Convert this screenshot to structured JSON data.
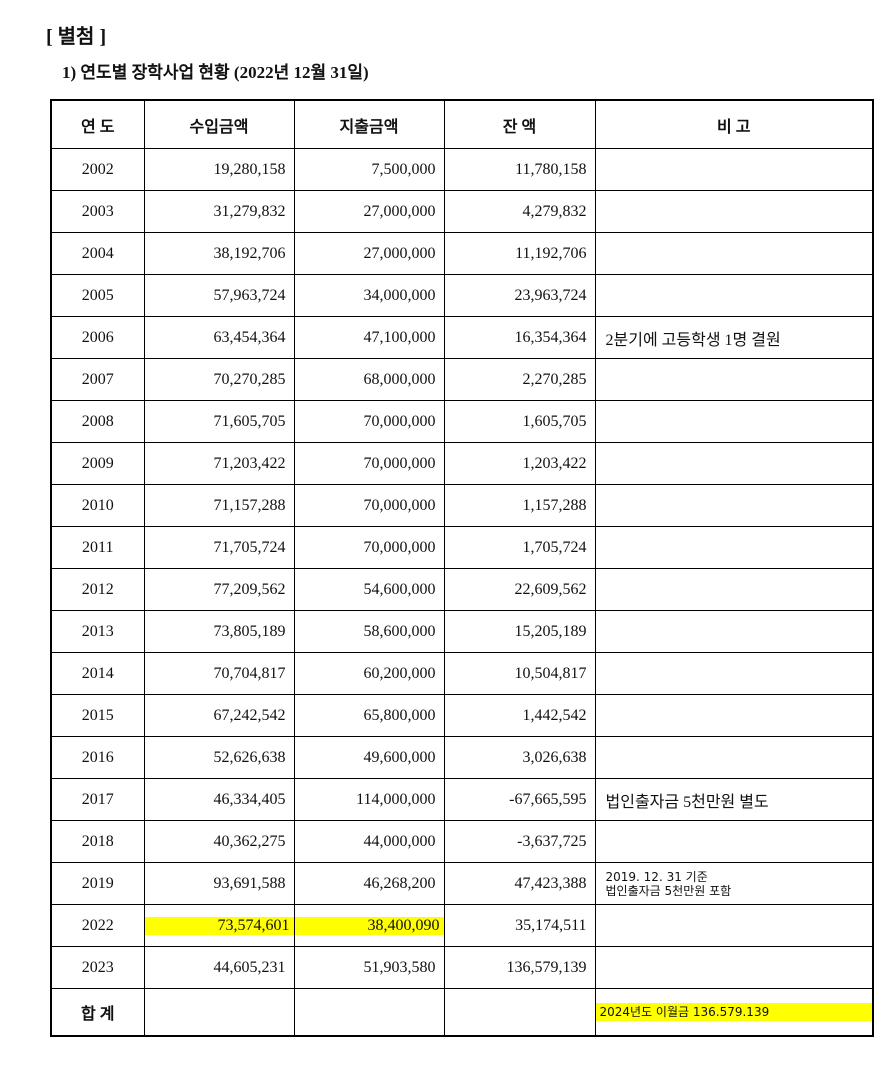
{
  "header": {
    "title": "[ 별첨 ]",
    "subtitle": "1) 연도별 장학사업 현황 (2022년 12월 31일)"
  },
  "table": {
    "columns": [
      "연  도",
      "수입금액",
      "지출금액",
      "잔  액",
      "비 고"
    ],
    "rows": [
      [
        "2002",
        "19,280,158",
        "7,500,000",
        "11,780,158",
        null
      ],
      [
        "2003",
        "31,279,832",
        "27,000,000",
        "4,279,832",
        null
      ],
      [
        "2004",
        "38,192,706",
        "27,000,000",
        "11,192,706",
        null
      ],
      [
        "2005",
        "57,963,724",
        "34,000,000",
        "23,963,724",
        null
      ],
      [
        "2006",
        "63,454,364",
        "47,100,000",
        "16,354,364",
        "2분기에 고등학생 1명 결원"
      ],
      [
        "2007",
        "70,270,285",
        "68,000,000",
        "2,270,285",
        null
      ],
      [
        "2008",
        "71,605,705",
        "70,000,000",
        "1,605,705",
        null
      ],
      [
        "2009",
        "71,203,422",
        "70,000,000",
        "1,203,422",
        null
      ],
      [
        "2010",
        "71,157,288",
        "70,000,000",
        "1,157,288",
        null
      ],
      [
        "2011",
        "71,705,724",
        "70,000,000",
        "1,705,724",
        null
      ],
      [
        "2012",
        "77,209,562",
        "54,600,000",
        "22,609,562",
        null
      ],
      [
        "2013",
        "73,805,189",
        "58,600,000",
        "15,205,189",
        null
      ],
      [
        "2014",
        "70,704,817",
        "60,200,000",
        "10,504,817",
        null
      ],
      [
        "2015",
        "67,242,542",
        "65,800,000",
        "1,442,542",
        null
      ],
      [
        "2016",
        "52,626,638",
        "49,600,000",
        "3,026,638",
        null
      ],
      [
        "2017",
        "46,334,405",
        "114,000,000",
        "-67,665,595",
        "법인출자금 5천만원 별도"
      ],
      [
        "2018",
        "40,362,275",
        "44,000,000",
        "-3,637,725",
        null
      ],
      [
        "2019",
        "93,691,588",
        "46,268,200",
        "47,423,388",
        [
          "2019. 12. 31 기준",
          "법인출자금 5천만원 포함"
        ]
      ],
      [
        "2022",
        "73,574,601",
        "38,400,090",
        "35,174,511",
        null
      ],
      [
        "2023",
        "44,605,231",
        "51,903,580",
        "136,579,139",
        null
      ],
      [
        "합 계",
        null,
        null,
        null,
        "2024년도 이월금 136.579.139"
      ]
    ]
  }
}
